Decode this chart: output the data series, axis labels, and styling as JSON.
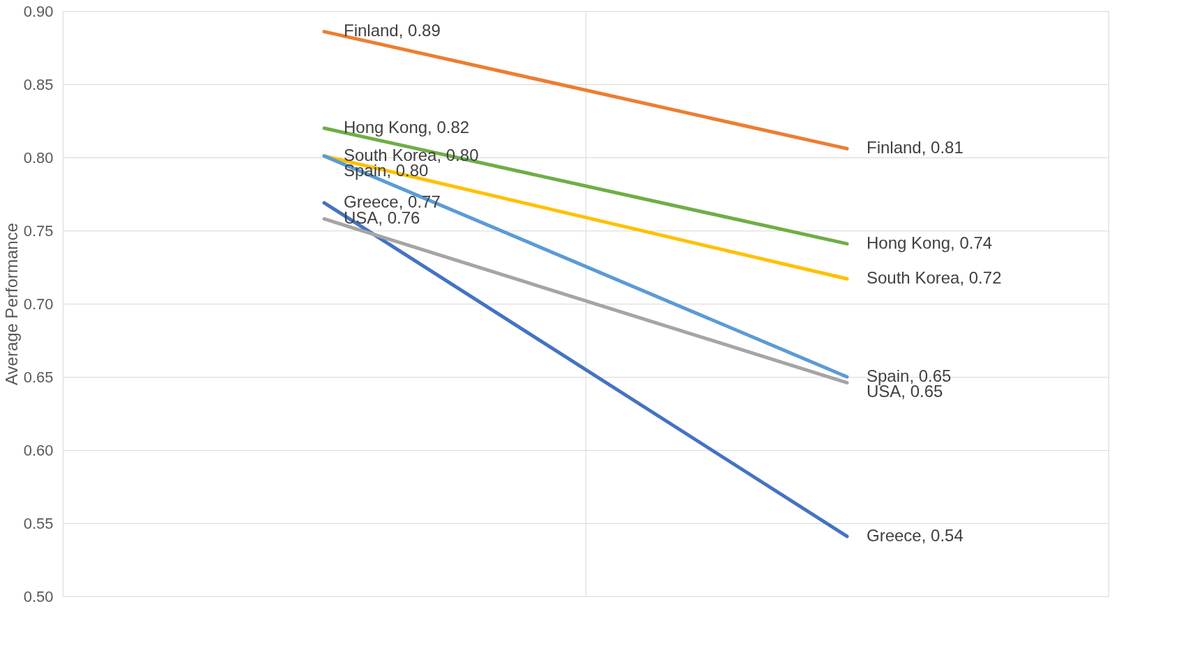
{
  "chart_data": {
    "type": "line",
    "ylabel": "Average Performance",
    "categories": [
      null,
      null
    ],
    "ylim": [
      0.5,
      0.9
    ],
    "yticks": [
      {
        "value": 0.5,
        "label": "0.50"
      },
      0.55,
      {
        "value": 0.6,
        "label": "0.60"
      },
      0.65,
      {
        "value": 0.7,
        "label": "0.70"
      },
      0.75,
      {
        "value": 0.8,
        "label": "0.80"
      },
      0.85,
      {
        "value": 0.9,
        "label": "0.90"
      }
    ],
    "grid": true,
    "legend": false,
    "tick_labels": "y",
    "marker": "none",
    "line_style": "solid",
    "series": [
      {
        "color": "#ed7d31",
        "values": [
          0.886,
          0.806
        ],
        "value_labels": [
          "Finland, 0.89",
          "Finland, 0.81"
        ]
      },
      {
        "color": "#70ad47",
        "values": [
          0.82,
          0.741
        ],
        "value_labels": [
          "Hong Kong, 0.82",
          "Hong Kong, 0.74"
        ]
      },
      {
        "color": "#ffc000",
        "values": [
          0.801,
          0.717
        ],
        "value_labels": [
          "South Korea, 0.80",
          "South Korea, 0.72"
        ]
      },
      {
        "color": "#5b9bd5",
        "values": [
          0.801,
          0.65
        ],
        "value_labels": [
          "Spain, 0.80",
          "Spain, 0.65"
        ]
      },
      {
        "color": "#4472c4",
        "values": [
          0.769,
          0.541
        ],
        "value_labels": [
          "Greece, 0.77",
          "Greece, 0.54"
        ]
      },
      {
        "color": "#a5a5a5",
        "values": [
          0.758,
          0.646
        ],
        "value_labels": [
          "USA, 0.76",
          "USA, 0.65"
        ]
      }
    ]
  }
}
